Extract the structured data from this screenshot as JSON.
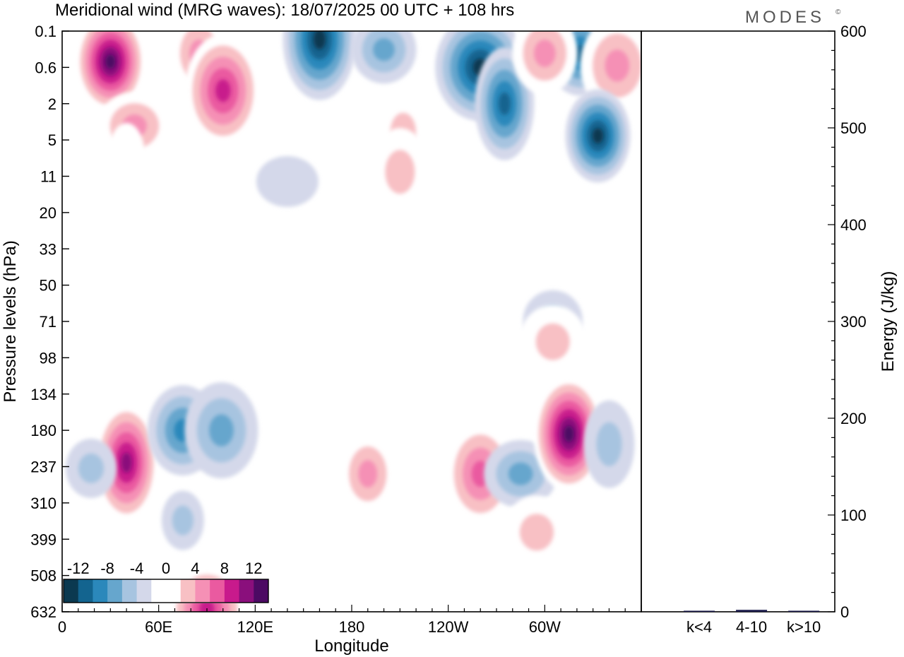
{
  "title": "Meridional wind (MRG waves):  18/07/2025  00 UTC  + 108 hrs",
  "brand": "MODES",
  "brand_mark": "©",
  "chart_data": [
    {
      "type": "heatmap",
      "xlabel": "Longitude",
      "ylabel": "Pressure levels (hPa)",
      "x_ticks": [
        "0",
        "60E",
        "120E",
        "180",
        "120W",
        "60W"
      ],
      "x_tick_degrees": [
        0,
        60,
        120,
        180,
        240,
        300
      ],
      "xlim": [
        0,
        360
      ],
      "y_ticks": [
        "0.1",
        "0.6",
        "2",
        "5",
        "11",
        "20",
        "33",
        "50",
        "71",
        "98",
        "134",
        "180",
        "237",
        "310",
        "399",
        "508",
        "632"
      ],
      "colorbar": {
        "labels": [
          "-12",
          "-8",
          "-4",
          "0",
          "4",
          "8",
          "12"
        ],
        "levels": [
          -14,
          -12,
          -10,
          -8,
          -6,
          -4,
          -2,
          2,
          4,
          6,
          8,
          10,
          12,
          14
        ],
        "colors": [
          "#0b3950",
          "#13648f",
          "#2b88bb",
          "#66a6cd",
          "#a7c4e0",
          "#d4d8ea",
          "#ffffff",
          "#ffffff",
          "#f8c0c4",
          "#f590b5",
          "#ea5aa0",
          "#c81a8c",
          "#8a0f7c",
          "#4c0a63"
        ]
      },
      "features": [
        {
          "lon": 30,
          "level": 0.45,
          "value": 14
        },
        {
          "lon": 85,
          "level": 0.3,
          "value": 6
        },
        {
          "lon": 100,
          "level": 1.3,
          "value": 10
        },
        {
          "lon": 45,
          "level": 3.5,
          "value": 6
        },
        {
          "lon": 40,
          "level": 7,
          "value": 2
        },
        {
          "lon": 160,
          "level": 0.15,
          "value": -12
        },
        {
          "lon": 200,
          "level": 0.25,
          "value": -6
        },
        {
          "lon": 260,
          "level": 0.6,
          "value": -12
        },
        {
          "lon": 275,
          "level": 2,
          "value": -10
        },
        {
          "lon": 322,
          "level": 0.3,
          "value": -10
        },
        {
          "lon": 300,
          "level": 0.3,
          "value": 6
        },
        {
          "lon": 345,
          "level": 0.55,
          "value": 6
        },
        {
          "lon": 333,
          "level": 4.5,
          "value": -12
        },
        {
          "lon": 212,
          "level": 4,
          "value": 4
        },
        {
          "lon": 210,
          "level": 10,
          "value": 4
        },
        {
          "lon": 140,
          "level": 12,
          "value": -2
        },
        {
          "lon": 190,
          "level": 23,
          "value": 2
        },
        {
          "lon": 30,
          "level": 40,
          "value": 2
        },
        {
          "lon": 305,
          "level": 70,
          "value": -4
        },
        {
          "lon": 305,
          "level": 85,
          "value": 4
        },
        {
          "lon": 40,
          "level": 230,
          "value": 12
        },
        {
          "lon": 18,
          "level": 240,
          "value": -4
        },
        {
          "lon": 75,
          "level": 180,
          "value": -8
        },
        {
          "lon": 99,
          "level": 180,
          "value": -6
        },
        {
          "lon": 75,
          "level": 350,
          "value": -4
        },
        {
          "lon": 190,
          "level": 250,
          "value": 6
        },
        {
          "lon": 260,
          "level": 250,
          "value": 8
        },
        {
          "lon": 285,
          "level": 250,
          "value": -6
        },
        {
          "lon": 315,
          "level": 185,
          "value": 14
        },
        {
          "lon": 340,
          "level": 200,
          "value": -4
        },
        {
          "lon": 90,
          "level": 620,
          "value": 10
        },
        {
          "lon": 295,
          "level": 380,
          "value": 4
        }
      ]
    },
    {
      "type": "bar",
      "ylabel": "Energy (J/kg)",
      "categories": [
        "k<4",
        "4-10",
        "k>10"
      ],
      "values": [
        0.5,
        2,
        0.3
      ],
      "ylim": [
        0,
        600
      ],
      "y_ticks": [
        "0",
        "100",
        "200",
        "300",
        "400",
        "500",
        "600"
      ]
    }
  ]
}
